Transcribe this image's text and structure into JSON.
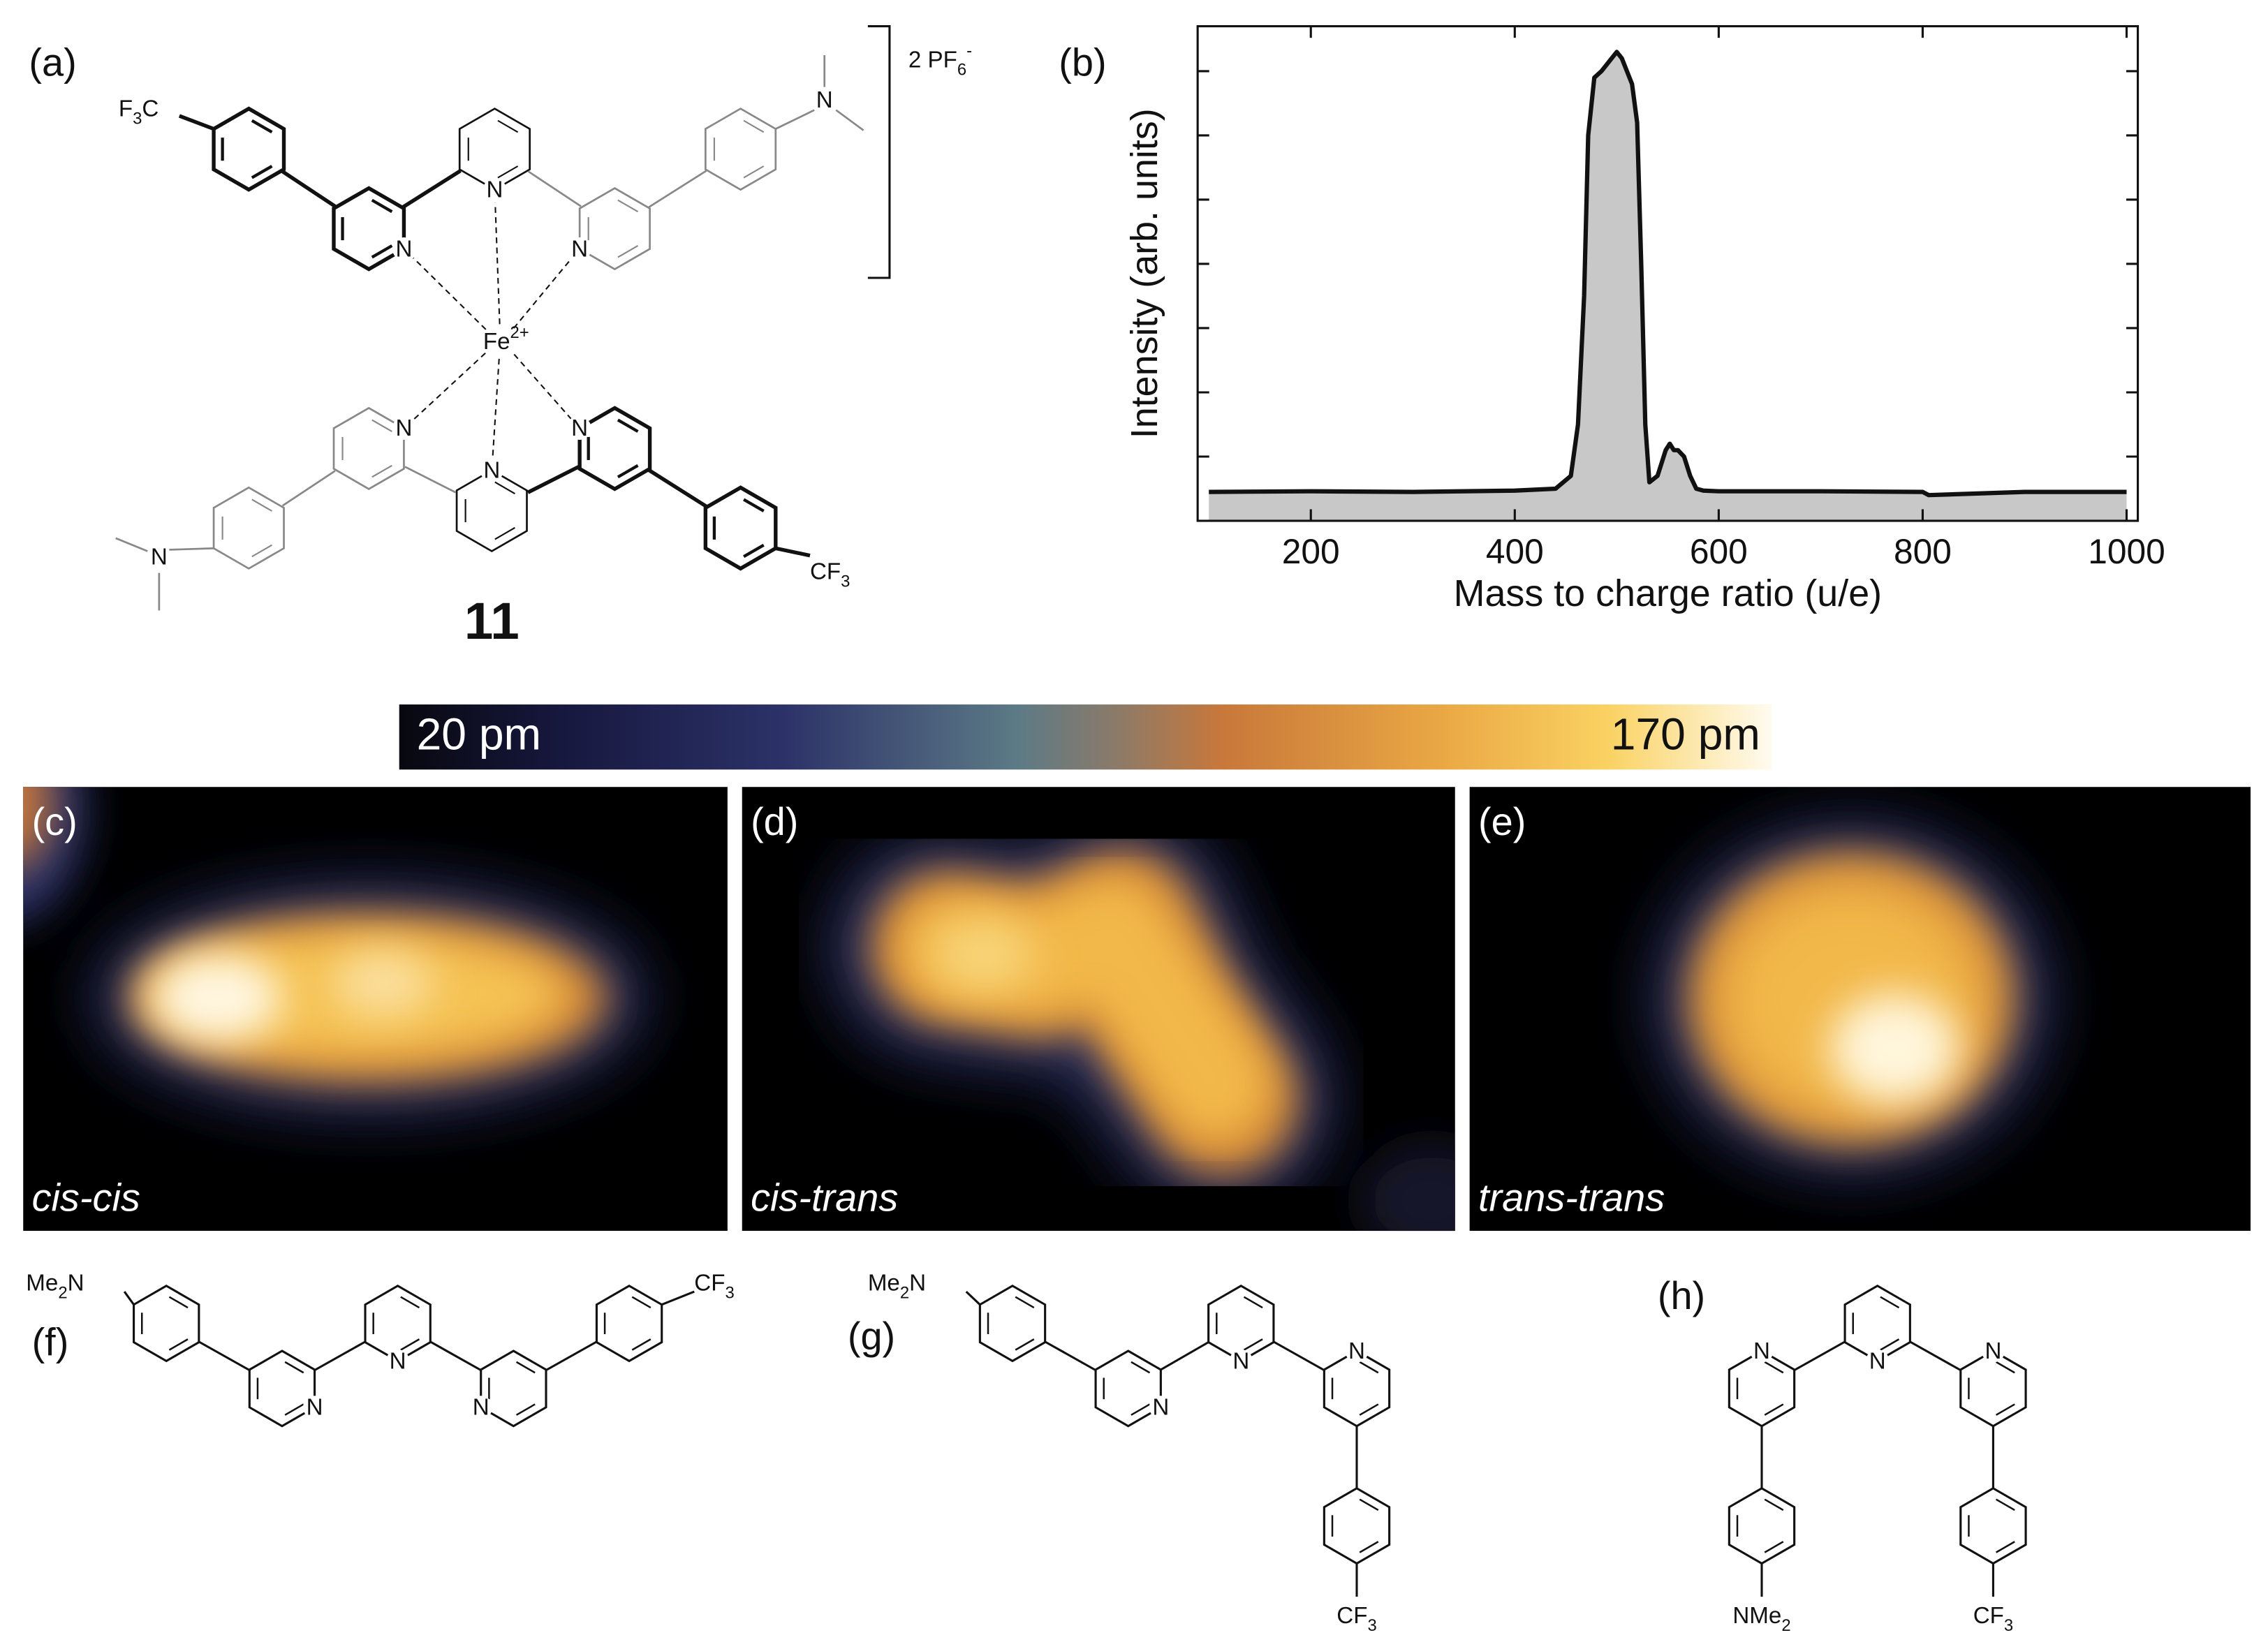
{
  "panels": {
    "a": {
      "label": "(a)",
      "compound_number": "11",
      "counterion": [
        "2 PF",
        "6",
        "-"
      ],
      "metal_center": [
        "Fe",
        "2+"
      ],
      "group_upper": [
        "F",
        "3",
        "C"
      ],
      "group_lower": [
        "CF",
        "3"
      ],
      "atom_n": "N"
    },
    "b": {
      "label": "(b)"
    },
    "colorbar": {
      "min_label": "20 pm",
      "max_label": "170 pm"
    },
    "c": {
      "label": "(c)",
      "caption": "cis-cis"
    },
    "d": {
      "label": "(d)",
      "caption": "cis-trans"
    },
    "e": {
      "label": "(e)",
      "caption": "trans-trans"
    },
    "f": {
      "label": "(f)",
      "donor": [
        "Me",
        "2",
        "N"
      ],
      "acceptor": [
        "CF",
        "3"
      ],
      "atom_n": "N"
    },
    "g": {
      "label": "(g)",
      "donor": [
        "Me",
        "2",
        "N"
      ],
      "acceptor": [
        "CF",
        "3"
      ],
      "atom_n": "N"
    },
    "h": {
      "label": "(h)",
      "donor": [
        "NMe",
        "2"
      ],
      "acceptor": [
        "CF",
        "3"
      ],
      "atom_n": "N"
    }
  },
  "chart_data": {
    "type": "area",
    "x_label": "Mass to charge ratio (u/e)",
    "y_label": "Intensity (arb. units)",
    "xlim": [
      89,
      1011
    ],
    "xticks": [
      200,
      400,
      600,
      800,
      1000
    ],
    "ylim": [
      0,
      7.7
    ],
    "yticks": [
      1,
      2,
      3,
      4,
      5,
      6,
      7
    ],
    "series": [
      {
        "color": "#111111",
        "fill": "#c8c8c8",
        "x": [
          100,
          200,
          300,
          400,
          440,
          455,
          462,
          468,
          472,
          478,
          485,
          490,
          495,
          500,
          505,
          510,
          515,
          520,
          524,
          528,
          532,
          540,
          548,
          552,
          556,
          560,
          566,
          572,
          578,
          585,
          600,
          700,
          800,
          806,
          900,
          1000
        ],
        "values": [
          0.45,
          0.46,
          0.45,
          0.47,
          0.5,
          0.7,
          1.5,
          3.5,
          6.0,
          6.9,
          7.0,
          7.1,
          7.2,
          7.3,
          7.2,
          7.0,
          6.8,
          6.2,
          4.0,
          1.5,
          0.6,
          0.7,
          1.1,
          1.2,
          1.1,
          1.1,
          1.0,
          0.7,
          0.5,
          0.47,
          0.46,
          0.46,
          0.45,
          0.4,
          0.45,
          0.45
        ]
      }
    ]
  }
}
